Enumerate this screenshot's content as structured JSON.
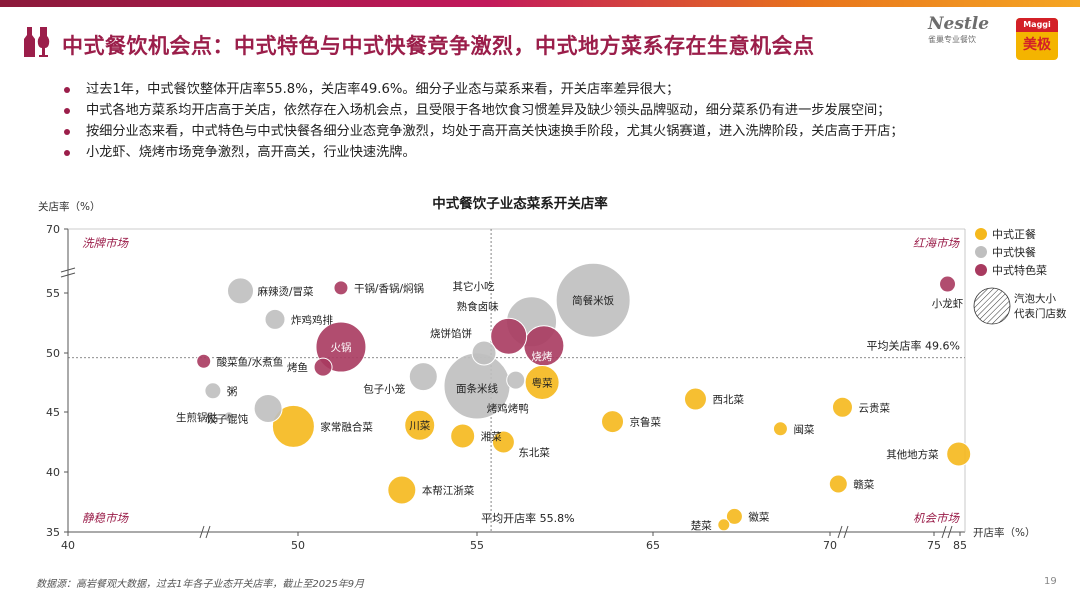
{
  "header": {
    "title": "中式餐饮机会点：中式特色与中式快餐竞争激烈，中式地方菜系存在生意机会点",
    "brand_nestle": "Nestle",
    "brand_nestle_sub": "雀巢专业餐饮",
    "brand_maggi": "Maggi",
    "brand_maggi_cn": "美极"
  },
  "bullets": [
    "过去1年，中式餐饮整体开店率55.8%，关店率49.6%。细分子业态与菜系来看，开关店率差异很大；",
    "中式各地方菜系均开店高于关店，依然存在入场机会点，且受限于各地饮食习惯差异及缺少领头品牌驱动，细分菜系仍有进一步发展空间；",
    "按细分业态来看，中式特色与中式快餐各细分业态竞争激烈，均处于高开高关快速换手阶段，尤其火锅赛道，进入洗牌阶段，关店高于开店；",
    "小龙虾、烧烤市场竞争激烈，高开高关，行业快速洗牌。"
  ],
  "chart_data": {
    "type": "scatter",
    "title": "中式餐饮子业态菜系开关店率",
    "xlabel": "开店率（%）",
    "ylabel": "关店率（%）",
    "xlim": [
      40,
      85
    ],
    "ylim": [
      35,
      70
    ],
    "xticks": [
      "40",
      "50",
      "55",
      "65",
      "70",
      "75",
      "85"
    ],
    "yticks": [
      "70",
      "55",
      "50",
      "45",
      "40",
      "35"
    ],
    "axis_breaks": true,
    "avg_open_rate": 55.8,
    "avg_close_rate": 49.6,
    "avg_open_label": "平均开店率 55.8%",
    "avg_close_label": "平均关店率 49.6%",
    "quadrants": {
      "top_left": "洗牌市场",
      "top_right": "红海市场",
      "bottom_left": "静稳市场",
      "bottom_right": "机会市场"
    },
    "legend": [
      {
        "name": "中式正餐",
        "color": "#f5b81c"
      },
      {
        "name": "中式快餐",
        "color": "#bfbfbf"
      },
      {
        "name": "中式特色菜",
        "color": "#a83a5f"
      }
    ],
    "bubble_note_line1": "汽泡大小",
    "bubble_note_line2": "代表门店数",
    "series": [
      {
        "name": "中式正餐",
        "color": "#f5b81c",
        "points": [
          {
            "label": "粤菜",
            "x": 58.7,
            "y": 47.5,
            "size": 17
          },
          {
            "label": "家常融合菜",
            "x": 49.8,
            "y": 43.8,
            "size": 21
          },
          {
            "label": "川菜",
            "x": 53.4,
            "y": 43.9,
            "size": 15
          },
          {
            "label": "湘菜",
            "x": 54.6,
            "y": 43.0,
            "size": 12
          },
          {
            "label": "东北菜",
            "x": 56.5,
            "y": 42.5,
            "size": 11
          },
          {
            "label": "京鲁菜",
            "x": 62.7,
            "y": 44.2,
            "size": 11
          },
          {
            "label": "西北菜",
            "x": 66.2,
            "y": 46.1,
            "size": 11
          },
          {
            "label": "云贵菜",
            "x": 70.6,
            "y": 45.4,
            "size": 10
          },
          {
            "label": "闽菜",
            "x": 68.6,
            "y": 43.6,
            "size": 7
          },
          {
            "label": "其他地方菜",
            "x": 84.5,
            "y": 41.5,
            "size": 12
          },
          {
            "label": "赣菜",
            "x": 70.4,
            "y": 39.0,
            "size": 9
          },
          {
            "label": "本帮江浙菜",
            "x": 52.9,
            "y": 38.5,
            "size": 14
          },
          {
            "label": "徽菜",
            "x": 67.3,
            "y": 36.3,
            "size": 8
          },
          {
            "label": "楚菜",
            "x": 67.0,
            "y": 35.6,
            "size": 6
          }
        ]
      },
      {
        "name": "中式快餐",
        "color": "#bfbfbf",
        "points": [
          {
            "label": "麻辣烫/冒菜",
            "x": 47.5,
            "y": 55.5,
            "size": 13
          },
          {
            "label": "炸鸡鸡排",
            "x": 49.0,
            "y": 52.8,
            "size": 10
          },
          {
            "label": "粥",
            "x": 46.3,
            "y": 46.8,
            "size": 8
          },
          {
            "label": "生煎锅贴",
            "x": 47.0,
            "y": 44.6,
            "size": 5
          },
          {
            "label": "饺子馄饨",
            "x": 48.7,
            "y": 45.3,
            "size": 14
          },
          {
            "label": "包子小笼",
            "x": 53.5,
            "y": 48.0,
            "size": 14
          },
          {
            "label": "面条米线",
            "x": 55.0,
            "y": 47.2,
            "size": 33
          },
          {
            "label": "烧饼馅饼",
            "x": 55.4,
            "y": 50.0,
            "size": 12
          },
          {
            "label": "烤鸡烤鸭",
            "x": 57.2,
            "y": 47.7,
            "size": 9
          },
          {
            "label": "其它小吃",
            "x": 58.1,
            "y": 52.6,
            "size": 25
          },
          {
            "label": "简餐米饭",
            "x": 61.6,
            "y": 54.4,
            "size": 37
          }
        ]
      },
      {
        "name": "中式特色菜",
        "color": "#a83a5f",
        "points": [
          {
            "label": "干锅/香锅/焖锅",
            "x": 51.2,
            "y": 56.2,
            "size": 7
          },
          {
            "label": "酸菜鱼/水煮鱼",
            "x": 45.9,
            "y": 49.3,
            "size": 7
          },
          {
            "label": "火锅",
            "x": 51.2,
            "y": 50.5,
            "size": 25
          },
          {
            "label": "烤鱼",
            "x": 50.7,
            "y": 48.8,
            "size": 9
          },
          {
            "label": "熟食卤味",
            "x": 56.8,
            "y": 51.4,
            "size": 18
          },
          {
            "label": "烧烤",
            "x": 58.8,
            "y": 50.6,
            "size": 20
          },
          {
            "label": "小龙虾",
            "x": 80.2,
            "y": 57.1,
            "size": 8
          }
        ]
      }
    ]
  },
  "footnote": "数据源：高岩餐观大数据，过去1年各子业态开关店率，截止至2025年9月",
  "page_number": "19"
}
